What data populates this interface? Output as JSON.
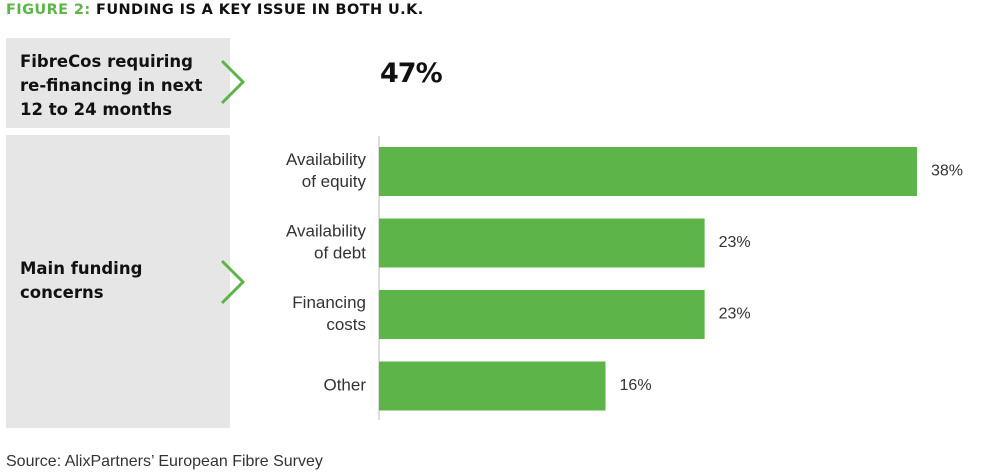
{
  "figure": {
    "title_prefix": "FIGURE 2:",
    "title_rest": "FUNDING IS A KEY ISSUE IN BOTH U.K."
  },
  "refinancing": {
    "label_lines": [
      "FibreCos requiring",
      "re-financing in next",
      "12 to 24 months"
    ],
    "value": "47%"
  },
  "concerns": {
    "label_lines": [
      "Main funding",
      "concerns"
    ]
  },
  "source": "Source: AlixPartners’ European Fibre Survey",
  "colors": {
    "accent": "#5db54a",
    "bar": "#5db54a",
    "panel": "#e6e6e6",
    "chevron": "#5db54a"
  },
  "chart_data": {
    "type": "bar",
    "orientation": "horizontal",
    "categories": [
      [
        "Availability",
        "of equity"
      ],
      [
        "Availability",
        "of debt"
      ],
      [
        "Financing",
        "costs"
      ],
      [
        "Other"
      ]
    ],
    "values": [
      38,
      23,
      23,
      16
    ],
    "value_labels": [
      "38%",
      "23%",
      "23%",
      "16%"
    ],
    "unit": "%",
    "xlim": [
      0,
      38
    ],
    "grid": false,
    "legend": "none"
  }
}
